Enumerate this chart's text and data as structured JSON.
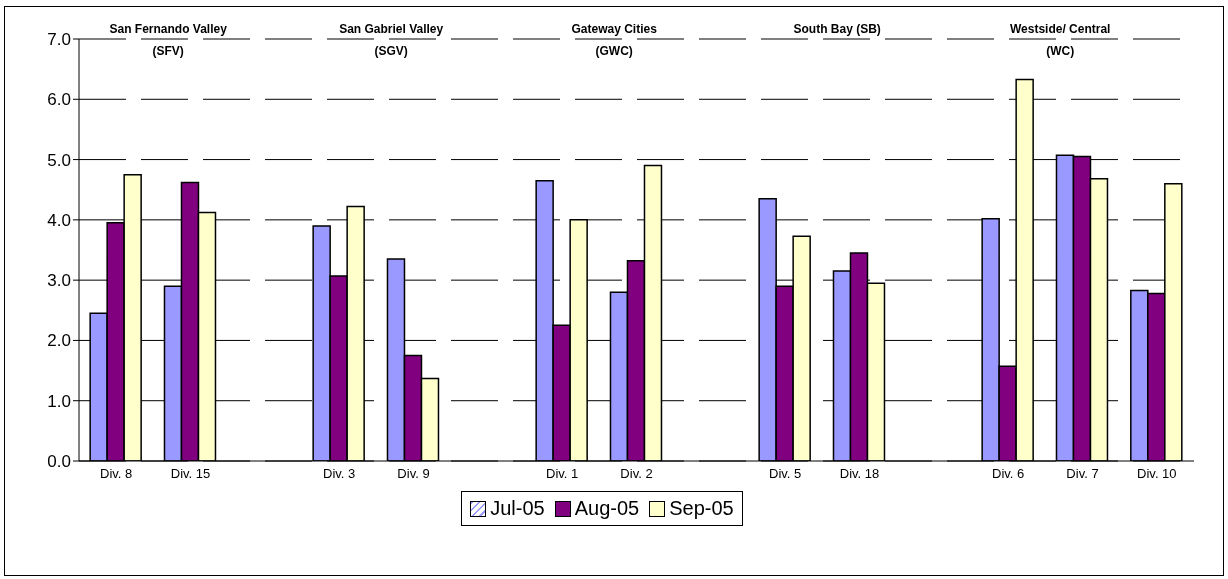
{
  "chart_data": {
    "type": "bar",
    "categories": [
      "Div. 8",
      "Div. 15",
      null,
      "Div. 3",
      "Div. 9",
      null,
      "Div. 1",
      "Div. 2",
      null,
      "Div. 5",
      "Div. 18",
      null,
      "Div. 6",
      "Div. 7",
      "Div. 10"
    ],
    "series": [
      {
        "name": "Jul-05",
        "color": "#9999ff",
        "values": [
          2.45,
          2.9,
          null,
          3.9,
          3.35,
          null,
          4.65,
          2.8,
          null,
          4.35,
          3.15,
          null,
          4.02,
          5.07,
          2.83
        ]
      },
      {
        "name": "Aug-05",
        "color": "#800080",
        "values": [
          3.95,
          4.62,
          null,
          3.07,
          1.75,
          null,
          2.25,
          3.32,
          null,
          2.9,
          3.45,
          null,
          1.57,
          5.05,
          2.78
        ]
      },
      {
        "name": "Sep-05",
        "color": "#ffffcc",
        "values": [
          4.75,
          4.12,
          null,
          4.22,
          1.37,
          null,
          4.0,
          4.9,
          null,
          3.73,
          2.95,
          null,
          6.33,
          4.68,
          4.6
        ]
      }
    ],
    "annotations": [
      "San Fernando Valley\n(SFV)",
      "San Gabriel Valley\n(SGV)",
      "Gateway Cities\n(GWC)",
      "South Bay (SB)",
      "Westside/ Central\n(WC)"
    ],
    "ylim": [
      0,
      7
    ],
    "yticks": [
      {
        "value": 0,
        "label": "0.0"
      },
      {
        "value": 1,
        "label": "1.0"
      },
      {
        "value": 2,
        "label": "2.0"
      },
      {
        "value": 3,
        "label": "3.0"
      },
      {
        "value": 4,
        "label": "4.0"
      },
      {
        "value": 5,
        "label": "5.0"
      },
      {
        "value": 6,
        "label": "6.0"
      },
      {
        "value": 7,
        "label": "7.0"
      }
    ],
    "grid": "y",
    "legend": "bottom"
  }
}
